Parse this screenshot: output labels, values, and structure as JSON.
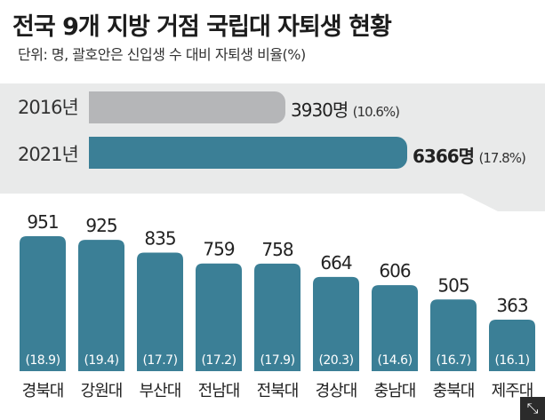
{
  "title": "전국 9개 지방 거점 국립대 자퇴생 현황",
  "subtitle": "단위: 명, 괄호안은 신입생 수 대비 자퇴생 비율(%)",
  "summary": [
    {
      "year": "2016년",
      "value": 3930,
      "value_text": "3930명",
      "pct_text": "(10.6%)",
      "color": "#b5b6b8",
      "bold": false
    },
    {
      "year": "2021년",
      "value": 6366,
      "value_text": "6366명",
      "pct_text": "(17.8%)",
      "color": "#3b7f96",
      "bold": true
    }
  ],
  "chart_data": {
    "type": "bar",
    "categories": [
      "경북대",
      "강원대",
      "부산대",
      "전남대",
      "전북대",
      "경상대",
      "충남대",
      "충북대",
      "제주대"
    ],
    "values": [
      951,
      925,
      835,
      759,
      758,
      664,
      606,
      505,
      363
    ],
    "value_labels": [
      "951",
      "925",
      "835",
      "759",
      "758",
      "664",
      "606",
      "505",
      "363"
    ],
    "ratios": [
      "(18.9)",
      "(19.4)",
      "(17.7)",
      "(17.2)",
      "(17.9)",
      "(20.3)",
      "(14.6)",
      "(16.7)",
      "(16.1)"
    ],
    "bar_color": "#3b7f96",
    "title": "",
    "xlabel": "",
    "ylabel": ""
  },
  "corner_icon": "expand-icon",
  "corner_icon_glyph": "⤡"
}
